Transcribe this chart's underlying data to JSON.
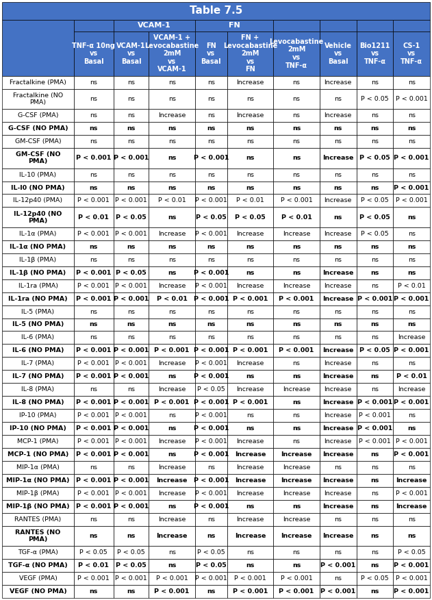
{
  "title": "Table 7.5",
  "header_bg": "#4472C4",
  "header_fg": "white",
  "col_headers": [
    "TNF-α 10ng\nvs\nBasal",
    "VCAM-1\nvs\nBasal",
    "VCAM-1 +\nLevocabastine\n2mM\nvs\nVCAM-1",
    "FN\nvs\nBasal",
    "FN +\nLevocabastine\n2mM\nvs\nFN",
    "Levocabastine\n2mM\nvs\nTNF-α",
    "Vehicle\nvs\nBasal",
    "Bio1211\nvs\nTNF-α",
    "CS-1\nvs\nTNF-α"
  ],
  "row_labels": [
    "Fractalkine (PMA)",
    "Fractalkine (NO\nPMA)",
    "G-CSF (PMA)",
    "G-CSF (NO PMA)",
    "GM-CSF (PMA)",
    "GM-CSF (NO\nPMA)",
    "IL-10 (PMA)",
    "IL-l0 (NO PMA)",
    "IL-12p40 (PMA)",
    "IL-12p40 (NO\nPMA)",
    "IL-1α (PMA)",
    "IL-1α (NO PMA)",
    "IL-1β (PMA)",
    "IL-1β (NO PMA)",
    "IL-1ra (PMA)",
    "IL-1ra (NO PMA)",
    "IL-5 (PMA)",
    "IL-5 (NO PMA)",
    "IL-6 (PMA)",
    "IL-6 (NO PMA)",
    "IL-7 (PMA)",
    "IL-7 (NO PMA)",
    "IL-8 (PMA)",
    "IL-8 (NO PMA)",
    "IP-10 (PMA)",
    "IP-10 (NO PMA)",
    "MCP-1 (PMA)",
    "MCP-1 (NO PMA)",
    "MIP-1α (PMA)",
    "MIP-1α (NO PMA)",
    "MIP-1β (PMA)",
    "MIP-1β (NO PMA)",
    "RANTES (PMA)",
    "RANTES (NO\nPMA)",
    "TGF-α (PMA)",
    "TGF-α (NO PMA)",
    "VEGF (PMA)",
    "VEGF (NO PMA)"
  ],
  "bold_rows": [
    3,
    5,
    7,
    9,
    11,
    13,
    15,
    17,
    19,
    21,
    23,
    25,
    27,
    29,
    31,
    33,
    35,
    37
  ],
  "table_data": [
    [
      "ns",
      "ns",
      "ns",
      "ns",
      "Increase",
      "ns",
      "Increase",
      "ns",
      "ns"
    ],
    [
      "ns",
      "ns",
      "ns",
      "ns",
      "ns",
      "ns",
      "ns",
      "P < 0.05",
      "P < 0.001"
    ],
    [
      "ns",
      "ns",
      "Increase",
      "ns",
      "Increase",
      "ns",
      "Increase",
      "ns",
      "ns"
    ],
    [
      "ns",
      "ns",
      "ns",
      "ns",
      "ns",
      "ns",
      "ns",
      "ns",
      "ns"
    ],
    [
      "ns",
      "ns",
      "ns",
      "ns",
      "ns",
      "ns",
      "ns",
      "ns",
      "ns"
    ],
    [
      "P < 0.001",
      "P < 0.001",
      "ns",
      "P < 0.001",
      "ns",
      "ns",
      "Increase",
      "P < 0.05",
      "P < 0.001"
    ],
    [
      "ns",
      "ns",
      "ns",
      "ns",
      "ns",
      "ns",
      "ns",
      "ns",
      "ns"
    ],
    [
      "ns",
      "ns",
      "ns",
      "ns",
      "ns",
      "ns",
      "ns",
      "ns",
      "P < 0.001"
    ],
    [
      "P < 0.001",
      "P < 0.001",
      "P < 0.01",
      "P < 0.001",
      "P < 0.01",
      "P < 0.001",
      "Increase",
      "P < 0.05",
      "P < 0.001"
    ],
    [
      "P < 0.01",
      "P < 0.05",
      "ns",
      "P < 0.05",
      "P < 0.05",
      "P < 0.01",
      "ns",
      "P < 0.05",
      "ns"
    ],
    [
      "P < 0.001",
      "P < 0.001",
      "Increase",
      "P < 0.001",
      "Increase",
      "Increase",
      "Increase",
      "P < 0.05",
      "ns"
    ],
    [
      "ns",
      "ns",
      "ns",
      "ns",
      "ns",
      "ns",
      "ns",
      "ns",
      "ns"
    ],
    [
      "ns",
      "ns",
      "ns",
      "ns",
      "ns",
      "ns",
      "ns",
      "ns",
      "ns"
    ],
    [
      "P < 0.001",
      "P < 0.05",
      "ns",
      "P < 0.001",
      "ns",
      "ns",
      "Increase",
      "ns",
      "ns"
    ],
    [
      "P < 0.001",
      "P < 0.001",
      "Increase",
      "P < 0.001",
      "Increase",
      "Increase",
      "Increase",
      "ns",
      "P < 0.01"
    ],
    [
      "P < 0.001",
      "P < 0.001",
      "P < 0.01",
      "P < 0.001",
      "P < 0.001",
      "P < 0.001",
      "Increase",
      "P < 0.001",
      "P < 0.001"
    ],
    [
      "ns",
      "ns",
      "ns",
      "ns",
      "ns",
      "ns",
      "ns",
      "ns",
      "ns"
    ],
    [
      "ns",
      "ns",
      "ns",
      "ns",
      "ns",
      "ns",
      "ns",
      "ns",
      "ns"
    ],
    [
      "ns",
      "ns",
      "ns",
      "ns",
      "ns",
      "ns",
      "ns",
      "ns",
      "Increase"
    ],
    [
      "P < 0.001",
      "P < 0.001",
      "P < 0.001",
      "P < 0.001",
      "P < 0.001",
      "P < 0.001",
      "Increase",
      "P < 0.05",
      "P < 0.001"
    ],
    [
      "P < 0.001",
      "P < 0.001",
      "Increase",
      "P < 0.001",
      "Increase",
      "ns",
      "Increase",
      "ns",
      "ns"
    ],
    [
      "P < 0.001",
      "P < 0.001",
      "ns",
      "P < 0.001",
      "ns",
      "ns",
      "Increase",
      "ns",
      "P < 0.01"
    ],
    [
      "ns",
      "ns",
      "Increase",
      "P < 0.05",
      "Increase",
      "Increase",
      "Increase",
      "ns",
      "Increase"
    ],
    [
      "P < 0.001",
      "P < 0.001",
      "P < 0.001",
      "P < 0.001",
      "P < 0.001",
      "ns",
      "Increase",
      "P < 0.001",
      "P < 0.001"
    ],
    [
      "P < 0.001",
      "P < 0.001",
      "ns",
      "P < 0.001",
      "ns",
      "ns",
      "Increase",
      "P < 0.001",
      "ns"
    ],
    [
      "P < 0.001",
      "P < 0.001",
      "ns",
      "P < 0.001",
      "ns",
      "ns",
      "Increase",
      "P < 0.001",
      "ns"
    ],
    [
      "P < 0.001",
      "P < 0.001",
      "Increase",
      "P < 0.001",
      "Increase",
      "ns",
      "Increase",
      "P < 0.001",
      "P < 0.001"
    ],
    [
      "P < 0.001",
      "P < 0.001",
      "ns",
      "P < 0.001",
      "Increase",
      "Increase",
      "Increase",
      "ns",
      "P < 0.001"
    ],
    [
      "ns",
      "ns",
      "Increase",
      "ns",
      "Increase",
      "Increase",
      "ns",
      "ns",
      "ns"
    ],
    [
      "P < 0.001",
      "P < 0.001",
      "Increase",
      "P < 0.001",
      "Increase",
      "Increase",
      "Increase",
      "ns",
      "Increase"
    ],
    [
      "P < 0.001",
      "P < 0.001",
      "Increase",
      "P < 0.001",
      "Increase",
      "Increase",
      "Increase",
      "ns",
      "P < 0.001"
    ],
    [
      "P < 0.001",
      "P < 0.001",
      "ns",
      "P < 0.001",
      "ns",
      "ns",
      "Increase",
      "ns",
      "Increase"
    ],
    [
      "ns",
      "ns",
      "Increase",
      "ns",
      "Increase",
      "Increase",
      "ns",
      "ns",
      "ns"
    ],
    [
      "ns",
      "ns",
      "Increase",
      "ns",
      "Increase",
      "Increase",
      "Increase",
      "ns",
      "ns"
    ],
    [
      "P < 0.05",
      "P < 0.05",
      "ns",
      "P < 0.05",
      "ns",
      "ns",
      "ns",
      "ns",
      "P < 0.05"
    ],
    [
      "P < 0.01",
      "P < 0.05",
      "ns",
      "P < 0.05",
      "ns",
      "ns",
      "P < 0.001",
      "ns",
      "P < 0.001"
    ],
    [
      "P < 0.001",
      "P < 0.001",
      "P < 0.001",
      "P < 0.001",
      "P < 0.001",
      "P < 0.001",
      "ns",
      "P < 0.05",
      "P < 0.001"
    ],
    [
      "ns",
      "ns",
      "P < 0.001",
      "ns",
      "P < 0.001",
      "P < 0.001",
      "P < 0.001",
      "ns",
      "P < 0.001"
    ]
  ],
  "title_fontsize": 11,
  "header_fontsize": 7.0,
  "cell_fontsize": 6.8,
  "row_label_fontsize": 6.8,
  "fig_width": 6.31,
  "fig_height": 8.76
}
